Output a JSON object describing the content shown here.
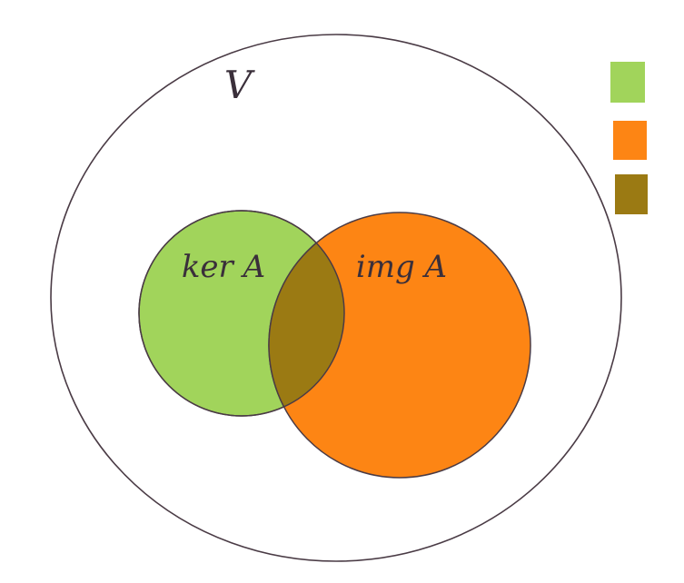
{
  "labels": {
    "space": "V",
    "kernel": "ker A",
    "image": "img A"
  }
}
